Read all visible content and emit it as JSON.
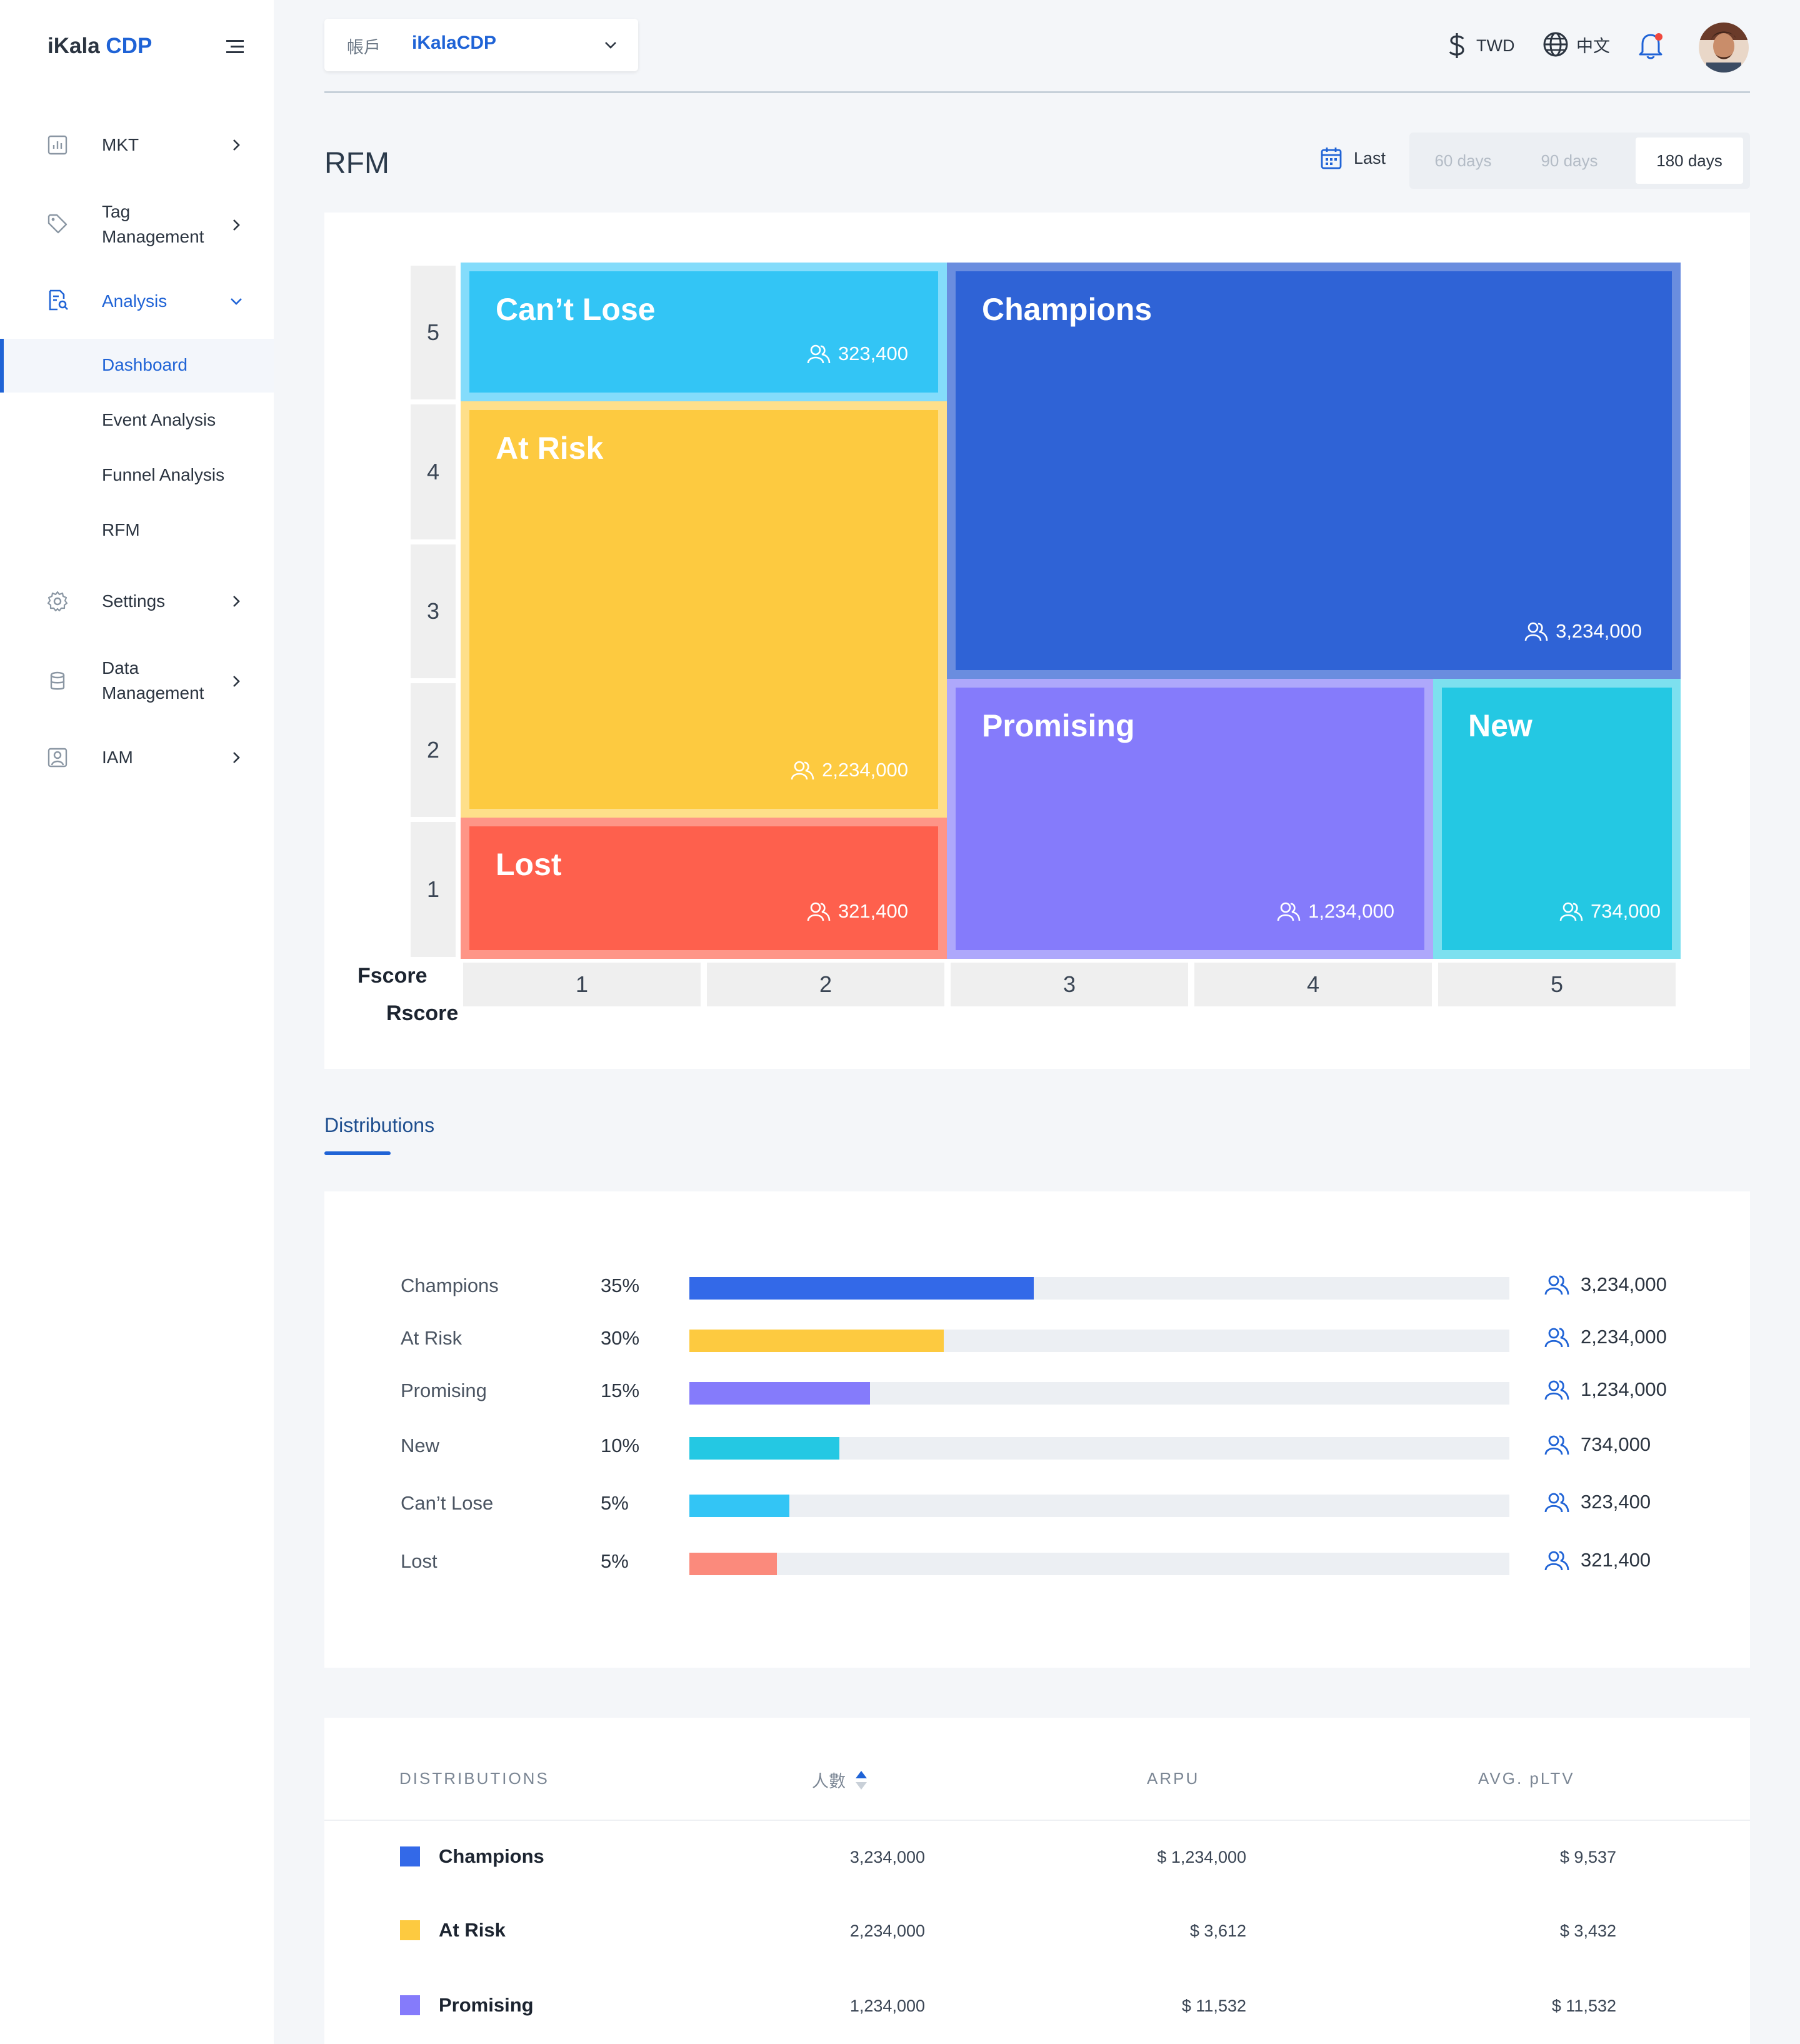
{
  "brand": {
    "name_part1": "iKala",
    "name_part2": "CDP"
  },
  "sidebar": {
    "items": [
      {
        "label": "MKT"
      },
      {
        "label": "Tag\nManagement"
      },
      {
        "label": "Analysis"
      },
      {
        "label": "Settings"
      },
      {
        "label": "Data\nManagement"
      },
      {
        "label": "IAM"
      }
    ],
    "analysis_sub": [
      {
        "label": "Dashboard",
        "active": true
      },
      {
        "label": "Event Analysis"
      },
      {
        "label": "Funnel Analysis"
      },
      {
        "label": "RFM"
      }
    ]
  },
  "header": {
    "account_label": "帳戶",
    "account_name": "iKalaCDP",
    "currency": "TWD",
    "language": "中文"
  },
  "page": {
    "title": "RFM",
    "range_label": "Last",
    "range_options": [
      "60 days",
      "90 days",
      "180 days"
    ],
    "range_selected": "180 days"
  },
  "rfm": {
    "row_labels": [
      "5",
      "4",
      "3",
      "2",
      "1"
    ],
    "col_labels": [
      "1",
      "2",
      "3",
      "4",
      "5"
    ],
    "y_axis": "Fscore",
    "x_axis": "Rscore",
    "segments": [
      {
        "name": "Can’t Lose",
        "count": "323,400",
        "color": "#33c5f5"
      },
      {
        "name": "Champions",
        "count": "3,234,000",
        "color": "#2f63d6"
      },
      {
        "name": "At Risk",
        "count": "2,234,000",
        "color": "#fdca40"
      },
      {
        "name": "Promising",
        "count": "1,234,000",
        "color": "#857bfb"
      },
      {
        "name": "New",
        "count": "734,000",
        "color": "#24c8e3"
      },
      {
        "name": "Lost",
        "count": "321,400",
        "color": "#fe604d"
      }
    ]
  },
  "distributions": {
    "tab_label": "Distributions",
    "rows": [
      {
        "name": "Champions",
        "pct": "35%",
        "fill": 0.42,
        "count": "3,234,000",
        "color": "#3369e8"
      },
      {
        "name": "At Risk",
        "pct": "30%",
        "fill": 0.31,
        "count": "2,234,000",
        "color": "#fdca40"
      },
      {
        "name": "Promising",
        "pct": "15%",
        "fill": 0.22,
        "count": "1,234,000",
        "color": "#857bfb"
      },
      {
        "name": "New",
        "pct": "10%",
        "fill": 0.183,
        "count": "734,000",
        "color": "#24c8e3"
      },
      {
        "name": "Can’t Lose",
        "pct": "5%",
        "fill": 0.122,
        "count": "323,400",
        "color": "#33c5f5"
      },
      {
        "name": "Lost",
        "pct": "5%",
        "fill": 0.107,
        "count": "321,400",
        "color": "#fb8a7c"
      }
    ]
  },
  "table": {
    "headers": {
      "distributions": "DISTRIBUTIONS",
      "people": "人數",
      "arpu": "ARPU",
      "pltv": "AVG. pLTV"
    },
    "rows": [
      {
        "name": "Champions",
        "people": "3,234,000",
        "arpu": "$ 1,234,000",
        "pltv": "$ 9,537",
        "color": "#3369e8"
      },
      {
        "name": "At Risk",
        "people": "2,234,000",
        "arpu": "$ 3,612",
        "pltv": "$ 3,432",
        "color": "#fdca40"
      },
      {
        "name": "Promising",
        "people": "1,234,000",
        "arpu": "$ 11,532",
        "pltv": "$ 11,532",
        "color": "#857bfb"
      }
    ]
  }
}
